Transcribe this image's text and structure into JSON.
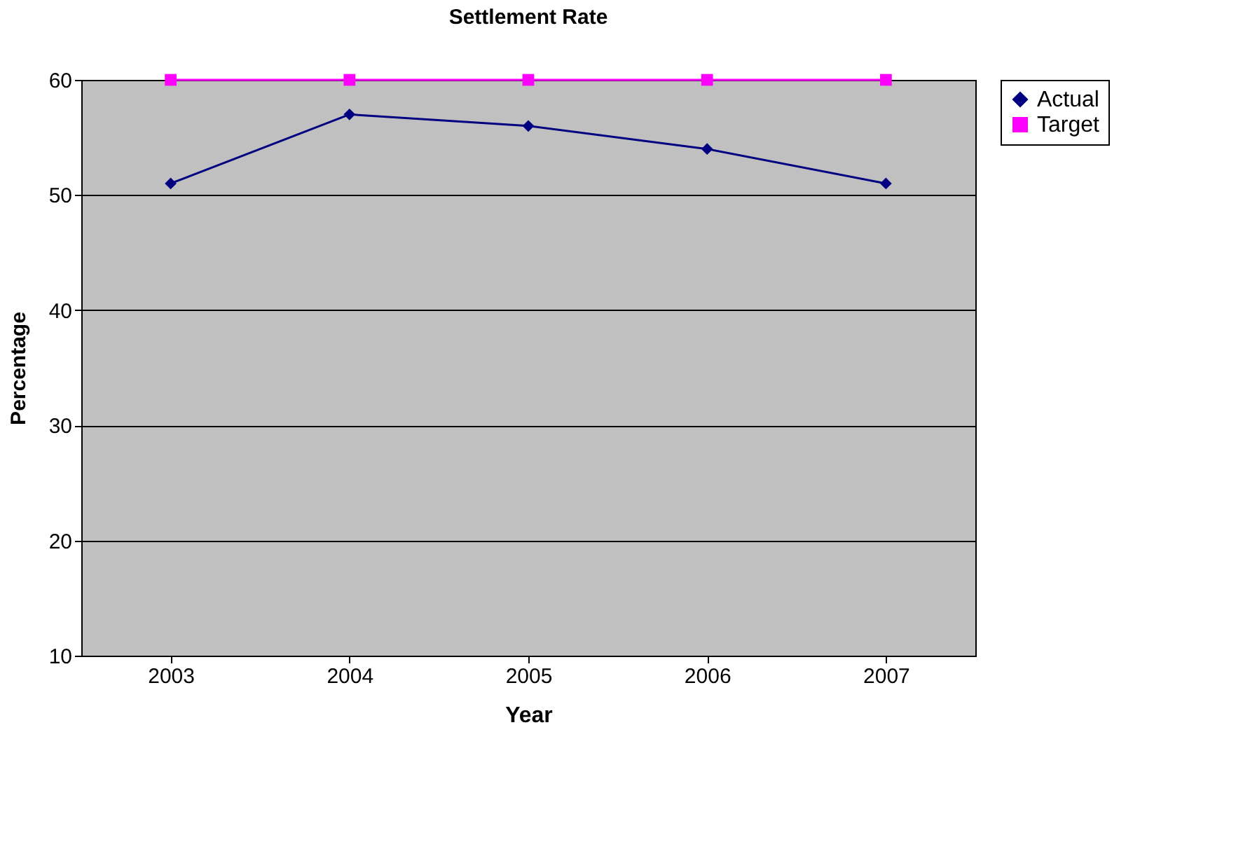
{
  "chart_data": {
    "type": "line",
    "title": "Settlement Rate",
    "xlabel": "Year",
    "ylabel": "Percentage",
    "categories": [
      "2003",
      "2004",
      "2005",
      "2006",
      "2007"
    ],
    "series": [
      {
        "name": "Actual",
        "color": "#000080",
        "marker": "diamond",
        "values": [
          51,
          57,
          56,
          54,
          51
        ]
      },
      {
        "name": "Target",
        "color": "#ff00ff",
        "marker": "square",
        "values": [
          60,
          60,
          60,
          60,
          60
        ]
      }
    ],
    "ylim": [
      10,
      60
    ],
    "yticks": [
      10,
      20,
      30,
      40,
      50,
      60
    ],
    "grid": "y",
    "legend": "right",
    "line_style": "solid"
  }
}
